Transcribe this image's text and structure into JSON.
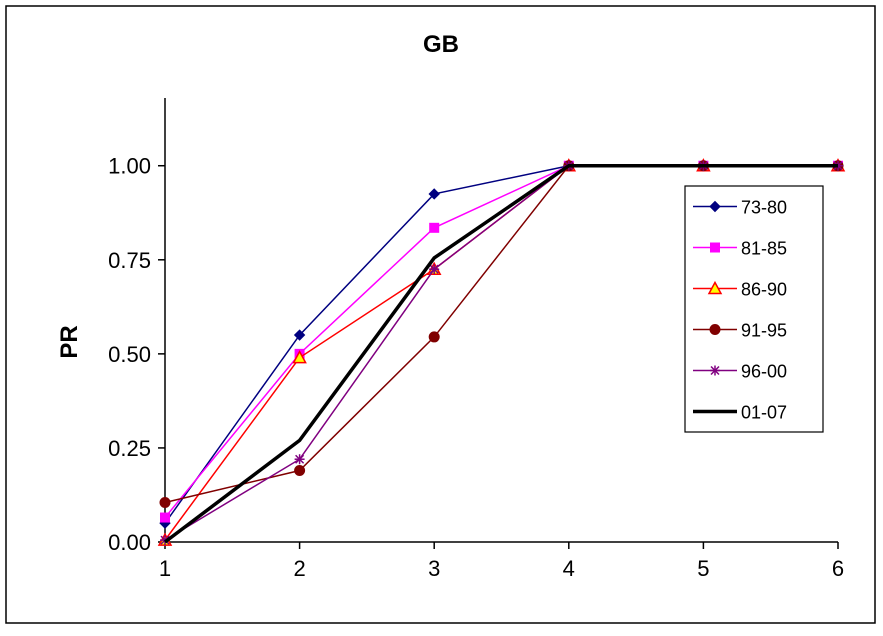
{
  "chart_data": {
    "type": "line",
    "title": "GB",
    "xlabel": "",
    "ylabel": "PR",
    "x": [
      1,
      2,
      3,
      4,
      5,
      6
    ],
    "xlim": [
      1,
      6
    ],
    "ylim": [
      0,
      1
    ],
    "y_ticks": [
      "0.00",
      "0.25",
      "0.50",
      "0.75",
      "1.00"
    ],
    "x_ticks": [
      "1",
      "2",
      "3",
      "4",
      "5",
      "6"
    ],
    "grid": false,
    "legend_position": "right",
    "series": [
      {
        "name": "73-80",
        "values": [
          0.05,
          0.55,
          0.925,
          1.0,
          1.0,
          1.0
        ],
        "color": "#000080",
        "marker": "diamond"
      },
      {
        "name": "81-85",
        "values": [
          0.065,
          0.5,
          0.835,
          1.0,
          1.0,
          1.0
        ],
        "color": "#ff00ff",
        "marker": "square"
      },
      {
        "name": "86-90",
        "values": [
          0.005,
          0.49,
          0.725,
          1.0,
          1.0,
          1.0
        ],
        "color": "#ff0000",
        "marker": "triangle"
      },
      {
        "name": "91-95",
        "values": [
          0.105,
          0.19,
          0.545,
          1.0,
          1.0,
          1.0
        ],
        "color": "#800000",
        "marker": "circle"
      },
      {
        "name": "96-00",
        "values": [
          0.005,
          0.22,
          0.725,
          1.0,
          1.0,
          1.0
        ],
        "color": "#800080",
        "marker": "star"
      },
      {
        "name": "01-07",
        "values": [
          0.0,
          0.27,
          0.755,
          1.0,
          1.0,
          1.0
        ],
        "color": "#000000",
        "marker": "none"
      }
    ]
  }
}
